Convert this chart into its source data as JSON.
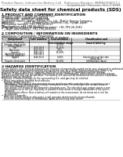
{
  "bg_color": "#ffffff",
  "header_left": "Product Name: Lithium Ion Battery Cell",
  "header_right_line1": "Reference Number: MBRB20080CT-1",
  "header_right_line2": "Established / Revision: Dec.7.2009",
  "title": "Safety data sheet for chemical products (SDS)",
  "section1_title": "1 PRODUCT AND COMPANY IDENTIFICATION",
  "section1_lines": [
    "・Product name: Lithium Ion Battery Cell",
    "・Product code: Cylindrical-type cell",
    "    (IH18650U, IH18650S, IH18650A)",
    "・Company name:   Sanyo Electric Co., Ltd., Mobile Energy Company",
    "・Address:           2001, Kamirenjaku, Suonishi-City, Hyogo, Japan",
    "・Telephone number: +81-799-26-4111",
    "・Fax number: +81-799-26-4121",
    "・Emergency telephone number (daytime): +81-799-26-2942",
    "    (Night and holiday): +81-799-26-4101"
  ],
  "section2_title": "2 COMPOSITION / INFORMATION ON INGREDIENTS",
  "section2_sub": "・Substance or preparation: Preparation",
  "section2_sub2": "・Information about the chemical nature of product:",
  "section3_title": "3 HAZARDS IDENTIFICATION",
  "section3_para1a": "For the battery cell, chemical materials are stored in a hermetically sealed metal case, designed to withstand",
  "section3_para1b": "temperatures and pressures/stresses during normal use. As a result, during normal use, there is no",
  "section3_para1c": "physical danger of ignition or explosion and there is no danger of hazardous material leakage.",
  "section3_para2a": "However, if exposed to a fire, added mechanical shocks, decomposed, arisen electric shock by misuse,",
  "section3_para2b": "the gas release vent can be operated. The battery cell case will be breached at fire-extreme. Hazardous",
  "section3_para2c": "materials may be released.",
  "section3_para3": "Moreover, if heated strongly by the surrounding fire, acid gas may be emitted.",
  "section3_bullet1": "• Most important hazard and effects:",
  "section3_human": "Human health effects:",
  "section3_inh1": "Inhalation: The release of the electrolyte has an anesthesia action and stimulates a respiratory tract.",
  "section3_skin1": "Skin contact: The release of the electrolyte stimulates a skin. The electrolyte skin contact causes a",
  "section3_skin2": "sore and stimulation on the skin.",
  "section3_eye1": "Eye contact: The release of the electrolyte stimulates eyes. The electrolyte eye contact causes a sore",
  "section3_eye2": "and stimulation on the eye. Especially, a substance that causes a strong inflammation of the eyes is",
  "section3_eye3": "contained.",
  "section3_env1": "Environmental effects: Since a battery cell remains in the environment, do not throw out it into the",
  "section3_env2": "environment.",
  "section3_bullet2": "• Specific hazards:",
  "section3_sp1": "If the electrolyte contacts with water, it will generate detrimental hydrogen fluoride.",
  "section3_sp2": "Since the seal electrolyte is inflammable liquid, do not bring close to fire."
}
